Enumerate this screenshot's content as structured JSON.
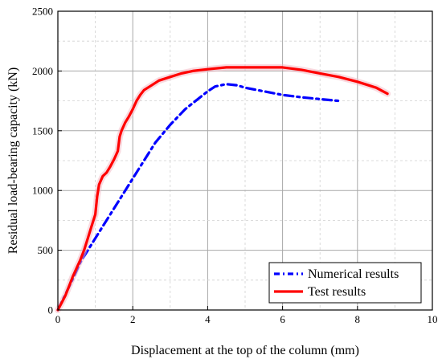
{
  "chart_data": {
    "type": "line",
    "title": "",
    "xlabel": "Displacement at the top of the column (mm)",
    "ylabel": "Residual load-bearing capacity (kN)",
    "xlim": [
      0,
      10
    ],
    "ylim": [
      0,
      2500
    ],
    "xticks": [
      0,
      2,
      4,
      6,
      8,
      10
    ],
    "yticks": [
      0,
      500,
      1000,
      1500,
      2000,
      2500
    ],
    "grid": true,
    "legend_position": "bottom-right",
    "series": [
      {
        "name": "Numerical results",
        "color": "#0000ff",
        "style": "dash-dot",
        "x": [
          0,
          0.2,
          0.4,
          0.6,
          0.8,
          1.0,
          1.2,
          1.5,
          1.8,
          2.0,
          2.3,
          2.6,
          3.0,
          3.4,
          3.8,
          4.0,
          4.2,
          4.5,
          4.8,
          5.0,
          5.5,
          6.0,
          6.5,
          7.0,
          7.5
        ],
        "y": [
          0,
          130,
          260,
          400,
          500,
          600,
          700,
          850,
          1000,
          1100,
          1250,
          1400,
          1550,
          1680,
          1780,
          1830,
          1870,
          1890,
          1880,
          1860,
          1830,
          1800,
          1780,
          1765,
          1750
        ]
      },
      {
        "name": "Test results",
        "color": "#ff0000",
        "style": "solid",
        "x": [
          0,
          0.1,
          0.2,
          0.3,
          0.4,
          0.5,
          0.6,
          0.7,
          0.8,
          0.9,
          1.0,
          1.05,
          1.1,
          1.2,
          1.3,
          1.4,
          1.5,
          1.6,
          1.65,
          1.7,
          1.8,
          1.9,
          2.0,
          2.1,
          2.2,
          2.3,
          2.5,
          2.7,
          3.0,
          3.3,
          3.6,
          4.0,
          4.5,
          5.0,
          5.5,
          6.0,
          6.5,
          7.0,
          7.5,
          8.0,
          8.5,
          8.8
        ],
        "y": [
          0,
          60,
          120,
          200,
          280,
          350,
          420,
          500,
          600,
          700,
          800,
          950,
          1050,
          1120,
          1150,
          1200,
          1260,
          1330,
          1450,
          1500,
          1570,
          1620,
          1680,
          1750,
          1800,
          1840,
          1880,
          1920,
          1950,
          1980,
          2000,
          2015,
          2030,
          2030,
          2030,
          2030,
          2010,
          1980,
          1950,
          1910,
          1860,
          1810
        ]
      }
    ]
  }
}
